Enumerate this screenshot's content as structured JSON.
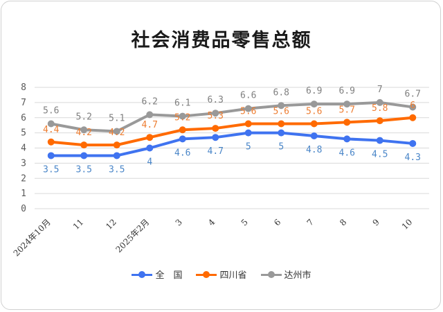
{
  "chart_data": {
    "type": "line",
    "title": "社会消费品零售总额",
    "categories": [
      "2024年10月",
      "11",
      "12",
      "2025年2月",
      "3",
      "4",
      "5",
      "6",
      "7",
      "8",
      "9",
      "10"
    ],
    "ylim": [
      0,
      8
    ],
    "yticks": [
      "0",
      "1",
      "2",
      "3",
      "4",
      "5",
      "6",
      "7",
      "8"
    ],
    "grid": true,
    "legend_position": "bottom",
    "series": [
      {
        "name": "全　国",
        "color": "#3f73f0",
        "label_color": "#4a86c8",
        "values": [
          3.5,
          3.5,
          3.5,
          4,
          4.6,
          4.7,
          5,
          5,
          4.8,
          4.6,
          4.5,
          4.3
        ],
        "labels": [
          "3.5",
          "3.5",
          "3.5",
          "4",
          "4.6",
          "4.7",
          "5",
          "5",
          "4.8",
          "4.6",
          "4.5",
          "4.3"
        ]
      },
      {
        "name": "四川省",
        "color": "#ff6a00",
        "label_color": "#ed7d31",
        "values": [
          4.4,
          4.2,
          4.2,
          4.7,
          5.2,
          5.3,
          5.6,
          5.6,
          5.6,
          5.7,
          5.8,
          6
        ],
        "labels": [
          "4.4",
          "4.2",
          "4.2",
          "4.7",
          "5.2",
          "5.3",
          "5.6",
          "5.6",
          "5.6",
          "5.7",
          "5.8",
          "6"
        ]
      },
      {
        "name": "达州市",
        "color": "#999999",
        "label_color": "#7f7f7f",
        "values": [
          5.6,
          5.2,
          5.1,
          6.2,
          6.1,
          6.3,
          6.6,
          6.8,
          6.9,
          6.9,
          7,
          6.7
        ],
        "labels": [
          "5.6",
          "5.2",
          "5.1",
          "6.2",
          "6.1",
          "6.3",
          "6.6",
          "6.8",
          "6.9",
          "6.9",
          "7",
          "6.7"
        ]
      }
    ]
  }
}
